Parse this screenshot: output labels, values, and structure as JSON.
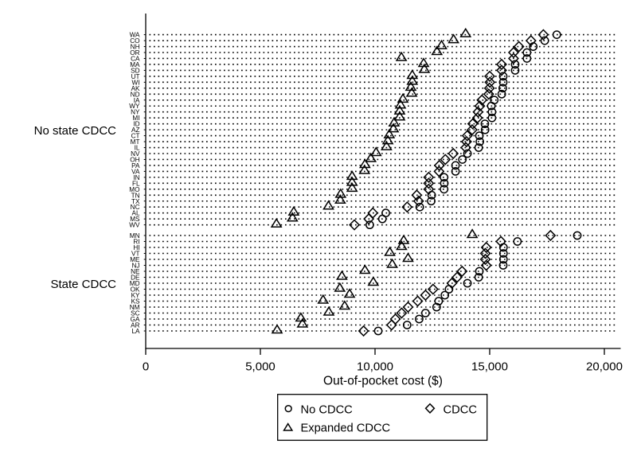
{
  "figure": {
    "background": "#ffffff",
    "ink": "#000000"
  },
  "chart_data": {
    "type": "scatter",
    "subtype": "horizontal-dot-plot",
    "title": "",
    "xlabel": "Out-of-pocket cost ($)",
    "ylabel": "",
    "xlim": [
      0,
      20000
    ],
    "x_ticks": [
      0,
      5000,
      10000,
      15000,
      20000
    ],
    "x_tick_labels": [
      "0",
      "5,000",
      "10,000",
      "15,000",
      "20,000"
    ],
    "grid": "dotted horizontal line per state row",
    "legend": {
      "position": "bottom-center-boxed",
      "rows": [
        [
          {
            "marker": "circle",
            "label": "No CDCC"
          },
          {
            "marker": "diamond",
            "label": "CDCC"
          }
        ],
        [
          {
            "marker": "triangle",
            "label": "Expanded CDCC"
          }
        ]
      ]
    },
    "series": [
      {
        "name": "No CDCC",
        "marker": "circle",
        "key": "no_cdcc"
      },
      {
        "name": "CDCC",
        "marker": "diamond",
        "key": "cdcc"
      },
      {
        "name": "Expanded CDCC",
        "marker": "triangle",
        "key": "expanded_cdcc"
      }
    ],
    "groups": [
      {
        "label": "No state CDCC",
        "states": [
          {
            "state": "WA",
            "no_cdcc": 17925,
            "cdcc": 17340,
            "expanded_cdcc": 13950
          },
          {
            "state": "CO",
            "no_cdcc": 17400,
            "cdcc": 16800,
            "expanded_cdcc": 13425
          },
          {
            "state": "NH",
            "no_cdcc": 16900,
            "cdcc": 16275,
            "expanded_cdcc": 12900
          },
          {
            "state": "OR",
            "no_cdcc": 16625,
            "cdcc": 16040,
            "expanded_cdcc": 12700
          },
          {
            "state": "CA",
            "no_cdcc": 16625,
            "cdcc": 16040,
            "expanded_cdcc": 11150
          },
          {
            "state": "MA",
            "no_cdcc": 16110,
            "cdcc": 15520,
            "expanded_cdcc": 12120
          },
          {
            "state": "SD",
            "no_cdcc": 16110,
            "cdcc": 15520,
            "expanded_cdcc": 12150
          },
          {
            "state": "UT",
            "no_cdcc": 15590,
            "cdcc": 15000,
            "expanded_cdcc": 11625
          },
          {
            "state": "WI",
            "no_cdcc": 15590,
            "cdcc": 15010,
            "expanded_cdcc": 11625
          },
          {
            "state": "AK",
            "no_cdcc": 15570,
            "cdcc": 14990,
            "expanded_cdcc": 11560
          },
          {
            "state": "ND",
            "no_cdcc": 15525,
            "cdcc": 14960,
            "expanded_cdcc": 11600
          },
          {
            "state": "IA",
            "no_cdcc": 15200,
            "cdcc": 14660,
            "expanded_cdcc": 11215
          },
          {
            "state": "WY",
            "no_cdcc": 15070,
            "cdcc": 14570,
            "expanded_cdcc": 11110
          },
          {
            "state": "NY",
            "no_cdcc": 15100,
            "cdcc": 14490,
            "expanded_cdcc": 11075
          },
          {
            "state": "MI",
            "no_cdcc": 15100,
            "cdcc": 14470,
            "expanded_cdcc": 11075
          },
          {
            "state": "ID",
            "no_cdcc": 14790,
            "cdcc": 14260,
            "expanded_cdcc": 10830
          },
          {
            "state": "AZ",
            "no_cdcc": 14800,
            "cdcc": 14235,
            "expanded_cdcc": 10800
          },
          {
            "state": "CT",
            "no_cdcc": 14550,
            "cdcc": 14020,
            "expanded_cdcc": 10620
          },
          {
            "state": "MT",
            "no_cdcc": 14570,
            "cdcc": 13990,
            "expanded_cdcc": 10560
          },
          {
            "state": "IL",
            "no_cdcc": 14520,
            "cdcc": 13960,
            "expanded_cdcc": 10500
          },
          {
            "state": "NV",
            "no_cdcc": 14030,
            "cdcc": 13410,
            "expanded_cdcc": 10045
          },
          {
            "state": "OH",
            "no_cdcc": 13810,
            "cdcc": 13065,
            "expanded_cdcc": 9815
          },
          {
            "state": "PA",
            "no_cdcc": 13510,
            "cdcc": 12805,
            "expanded_cdcc": 9560
          },
          {
            "state": "VA",
            "no_cdcc": 13510,
            "cdcc": 12790,
            "expanded_cdcc": 9540
          },
          {
            "state": "IN",
            "no_cdcc": 13010,
            "cdcc": 12340,
            "expanded_cdcc": 9000
          },
          {
            "state": "FL",
            "no_cdcc": 13020,
            "cdcc": 12340,
            "expanded_cdcc": 9000
          },
          {
            "state": "MO",
            "no_cdcc": 13010,
            "cdcc": 12340,
            "expanded_cdcc": 9000
          },
          {
            "state": "TN",
            "no_cdcc": 12470,
            "cdcc": 11820,
            "expanded_cdcc": 8500
          },
          {
            "state": "TX",
            "no_cdcc": 12450,
            "cdcc": 11900,
            "expanded_cdcc": 8485
          },
          {
            "state": "NC",
            "no_cdcc": 11950,
            "cdcc": 11400,
            "expanded_cdcc": 7970
          },
          {
            "state": "AL",
            "no_cdcc": 10470,
            "cdcc": 9905,
            "expanded_cdcc": 6455
          },
          {
            "state": "MS",
            "no_cdcc": 10320,
            "cdcc": 9725,
            "expanded_cdcc": 6400
          },
          {
            "state": "WV",
            "no_cdcc": 9770,
            "cdcc": 9100,
            "expanded_cdcc": 5700
          }
        ]
      },
      {
        "label": "State CDCC",
        "states": [
          {
            "state": "MN",
            "no_cdcc": 18820,
            "cdcc": 17650,
            "expanded_cdcc": 14240
          },
          {
            "state": "RI",
            "no_cdcc": 16210,
            "cdcc": 15490,
            "expanded_cdcc": 11250
          },
          {
            "state": "HI",
            "no_cdcc": 15600,
            "cdcc": 14850,
            "expanded_cdcc": 11160
          },
          {
            "state": "VT",
            "no_cdcc": 15600,
            "cdcc": 14810,
            "expanded_cdcc": 10645
          },
          {
            "state": "ME",
            "no_cdcc": 15600,
            "cdcc": 14810,
            "expanded_cdcc": 11440
          },
          {
            "state": "NJ",
            "no_cdcc": 15590,
            "cdcc": 14850,
            "expanded_cdcc": 10750
          },
          {
            "state": "NE",
            "no_cdcc": 14550,
            "cdcc": 13795,
            "expanded_cdcc": 9560
          },
          {
            "state": "DE",
            "no_cdcc": 14520,
            "cdcc": 13580,
            "expanded_cdcc": 8555
          },
          {
            "state": "MD",
            "no_cdcc": 14030,
            "cdcc": 13350,
            "expanded_cdcc": 9925
          },
          {
            "state": "OK",
            "no_cdcc": 13225,
            "cdcc": 12530,
            "expanded_cdcc": 8465
          },
          {
            "state": "KY",
            "no_cdcc": 13045,
            "cdcc": 12200,
            "expanded_cdcc": 8890
          },
          {
            "state": "KS",
            "no_cdcc": 12775,
            "cdcc": 11860,
            "expanded_cdcc": 7735
          },
          {
            "state": "NM",
            "no_cdcc": 12685,
            "cdcc": 11440,
            "expanded_cdcc": 8675
          },
          {
            "state": "SC",
            "no_cdcc": 12200,
            "cdcc": 11160,
            "expanded_cdcc": 7985
          },
          {
            "state": "GA",
            "no_cdcc": 11925,
            "cdcc": 10890,
            "expanded_cdcc": 6765
          },
          {
            "state": "AR",
            "no_cdcc": 11400,
            "cdcc": 10720,
            "expanded_cdcc": 6835
          },
          {
            "state": "LA",
            "no_cdcc": 10140,
            "cdcc": 9500,
            "expanded_cdcc": 5730
          }
        ]
      }
    ]
  }
}
